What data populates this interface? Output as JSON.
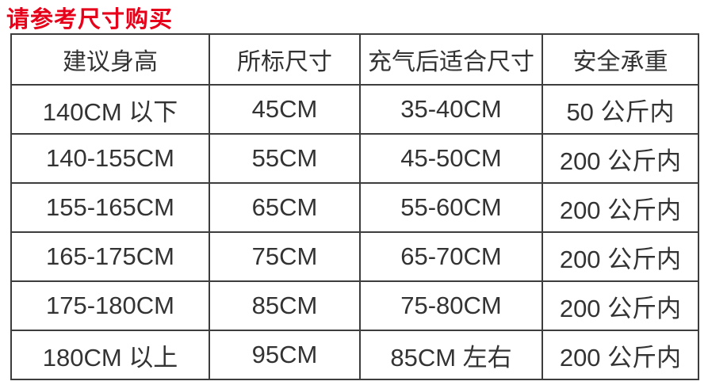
{
  "page": {
    "title": "请参考尺寸购买"
  },
  "colors": {
    "title_red": "#e60019",
    "border": "#3d3d3d",
    "text": "#333333",
    "background": "#ffffff"
  },
  "chart_data": {
    "type": "table",
    "title": "请参考尺寸购买",
    "columns": [
      "建议身高",
      "所标尺寸",
      "充气后适合尺寸",
      "安全承重"
    ],
    "rows": [
      [
        "140CM 以下",
        "45CM",
        "35-40CM",
        "50 公斤内"
      ],
      [
        "140-155CM",
        "55CM",
        "45-50CM",
        "200 公斤内"
      ],
      [
        "155-165CM",
        "65CM",
        "55-60CM",
        "200 公斤内"
      ],
      [
        "165-175CM",
        "75CM",
        "65-70CM",
        "200 公斤内"
      ],
      [
        "175-180CM",
        "85CM",
        "75-80CM",
        "200 公斤内"
      ],
      [
        "180CM 以上",
        "95CM",
        "85CM 左右",
        "200 公斤内"
      ]
    ]
  }
}
